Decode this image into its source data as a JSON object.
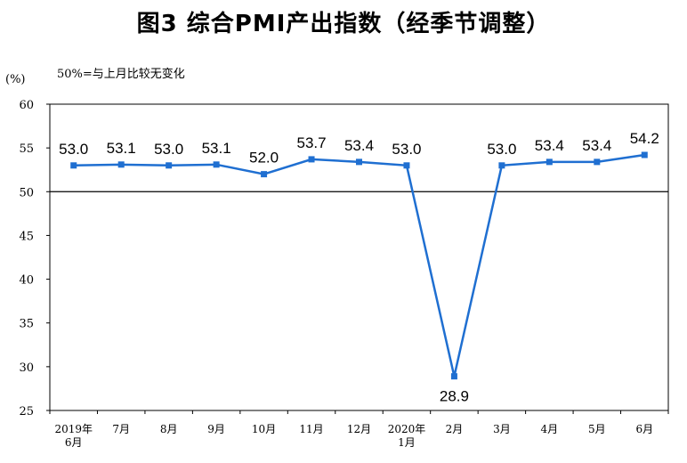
{
  "title": "图3 综合PMI产出指数（经季节调整）",
  "unit": "(%)",
  "note": "50%=与上月比较无变化",
  "chart_data": {
    "type": "line",
    "title": "图3 综合PMI产出指数（经季节调整）",
    "ylabel": "(%)",
    "ylim": [
      25,
      60
    ],
    "yticks": [
      25,
      30,
      35,
      40,
      45,
      50,
      55,
      60
    ],
    "reference_line": 50,
    "categories": [
      [
        "2019年",
        "6月"
      ],
      [
        "7月"
      ],
      [
        "8月"
      ],
      [
        "9月"
      ],
      [
        "10月"
      ],
      [
        "11月"
      ],
      [
        "12月"
      ],
      [
        "2020年",
        "1月"
      ],
      [
        "2月"
      ],
      [
        "3月"
      ],
      [
        "4月"
      ],
      [
        "5月"
      ],
      [
        "6月"
      ]
    ],
    "series": [
      {
        "values": [
          53.0,
          53.1,
          53.0,
          53.1,
          52.0,
          53.7,
          53.4,
          53.0,
          28.9,
          53.0,
          53.4,
          53.4,
          54.2
        ],
        "labels": [
          "53.0",
          "53.1",
          "53.0",
          "53.1",
          "52.0",
          "53.7",
          "53.4",
          "53.0",
          "28.9",
          "53.0",
          "53.4",
          "53.4",
          "54.2"
        ],
        "color": "#1f6fd1"
      }
    ],
    "grid": false
  }
}
